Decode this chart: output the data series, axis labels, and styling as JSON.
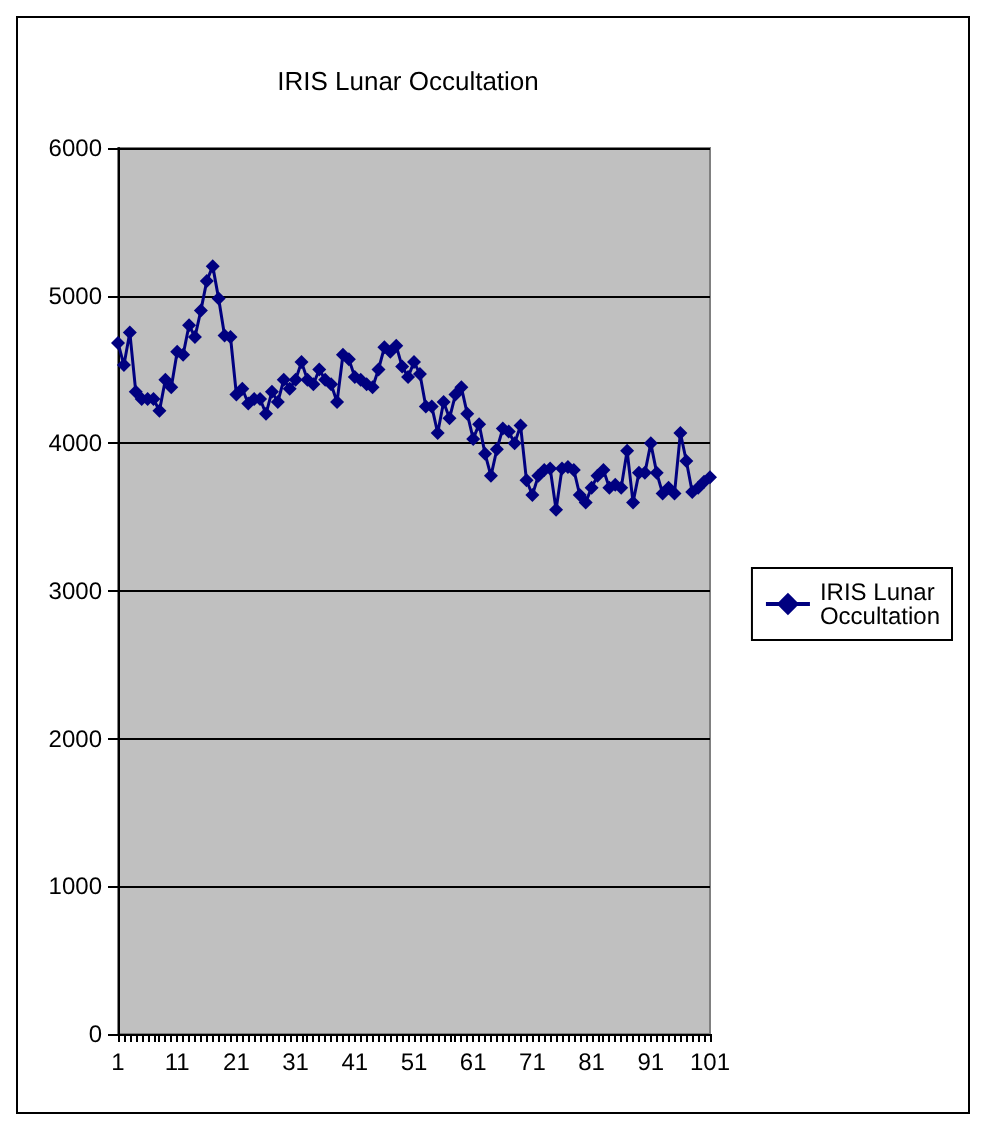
{
  "chart_data": {
    "type": "line",
    "title": "IRIS Lunar Occultation",
    "categories": [
      "1",
      null,
      null,
      null,
      null,
      null,
      null,
      null,
      null,
      null,
      "11",
      null,
      null,
      null,
      null,
      null,
      null,
      null,
      null,
      null,
      "21",
      null,
      null,
      null,
      null,
      null,
      null,
      null,
      null,
      null,
      "31",
      null,
      null,
      null,
      null,
      null,
      null,
      null,
      null,
      null,
      "41",
      null,
      null,
      null,
      null,
      null,
      null,
      null,
      null,
      null,
      "51",
      null,
      null,
      null,
      null,
      null,
      null,
      null,
      null,
      null,
      "61",
      null,
      null,
      null,
      null,
      null,
      null,
      null,
      null,
      null,
      "71",
      null,
      null,
      null,
      null,
      null,
      null,
      null,
      null,
      null,
      "81",
      null,
      null,
      null,
      null,
      null,
      null,
      null,
      null,
      null,
      "91",
      null,
      null,
      null,
      null,
      null,
      null,
      null,
      null,
      null,
      "101"
    ],
    "series": [
      {
        "name": "IRIS Lunar Occultation",
        "color": "#000080",
        "values": [
          4680,
          4530,
          4750,
          4350,
          4300,
          4300,
          4300,
          4220,
          4430,
          4380,
          4620,
          4600,
          4800,
          4720,
          4900,
          5100,
          5200,
          4980,
          4730,
          4720,
          4330,
          4370,
          4270,
          4300,
          4300,
          4200,
          4350,
          4280,
          4430,
          4370,
          4430,
          4550,
          4430,
          4400,
          4500,
          4430,
          4400,
          4280,
          4600,
          4570,
          4450,
          4430,
          4400,
          4380,
          4500,
          4650,
          4620,
          4660,
          4520,
          4450,
          4550,
          4470,
          4250,
          4250,
          4070,
          4280,
          4170,
          4330,
          4380,
          4200,
          4030,
          4130,
          3930,
          3780,
          3960,
          4100,
          4080,
          4000,
          4120,
          3750,
          3650,
          3780,
          3820,
          3830,
          3550,
          3830,
          3840,
          3820,
          3650,
          3600,
          3700,
          3780,
          3820,
          3700,
          3720,
          3700,
          3950,
          3600,
          3800,
          3800,
          4000,
          3800,
          3660,
          3700,
          3660,
          4070,
          3880,
          3670,
          3700,
          3740,
          3770
        ]
      }
    ],
    "ylim": [
      0,
      6000
    ],
    "yticks": [
      0,
      1000,
      2000,
      3000,
      4000,
      5000,
      6000
    ],
    "grid": "y",
    "legend": "right",
    "marker": "diamond",
    "line_style": "solid"
  }
}
